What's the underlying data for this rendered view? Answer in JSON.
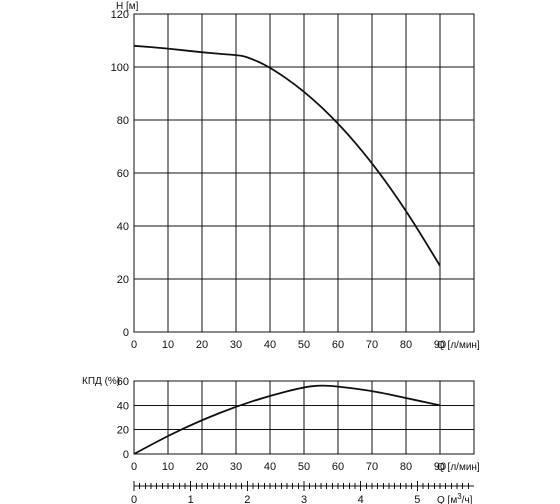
{
  "chart_data": [
    {
      "type": "line",
      "title": "",
      "xlabel": "Q [л/мин]",
      "ylabel": "H [м]",
      "xlim": [
        0,
        100
      ],
      "ylim": [
        0,
        120
      ],
      "x_ticks": [
        0,
        10,
        20,
        30,
        40,
        50,
        60,
        70,
        80,
        90
      ],
      "y_ticks": [
        0,
        20,
        40,
        60,
        80,
        100,
        120
      ],
      "grid": true,
      "series": [
        {
          "x": [
            0,
            10,
            20,
            30,
            33,
            40,
            50,
            60,
            70,
            80,
            90
          ],
          "y": [
            108,
            107,
            105.5,
            104.5,
            104,
            100,
            91,
            79,
            64,
            46,
            25
          ]
        }
      ]
    },
    {
      "type": "line",
      "title": "",
      "xlabel": "Q [л/мин]",
      "ylabel": "КПД (%)",
      "xlim": [
        0,
        100
      ],
      "ylim": [
        0,
        60
      ],
      "x_ticks": [
        0,
        10,
        20,
        30,
        40,
        50,
        60,
        70,
        80,
        90
      ],
      "y_ticks": [
        0,
        20,
        40,
        60
      ],
      "grid": true,
      "series": [
        {
          "x": [
            0,
            10,
            20,
            30,
            40,
            50,
            55,
            60,
            70,
            80,
            90
          ],
          "y": [
            0,
            15,
            28,
            39,
            48,
            55,
            56.5,
            55.5,
            52,
            46,
            40
          ]
        }
      ]
    },
    {
      "type": "axis",
      "xlabel": "Q [м³/ч]",
      "xlim": [
        0,
        6
      ],
      "x_ticks": [
        0,
        1,
        2,
        3,
        4,
        5
      ]
    }
  ]
}
